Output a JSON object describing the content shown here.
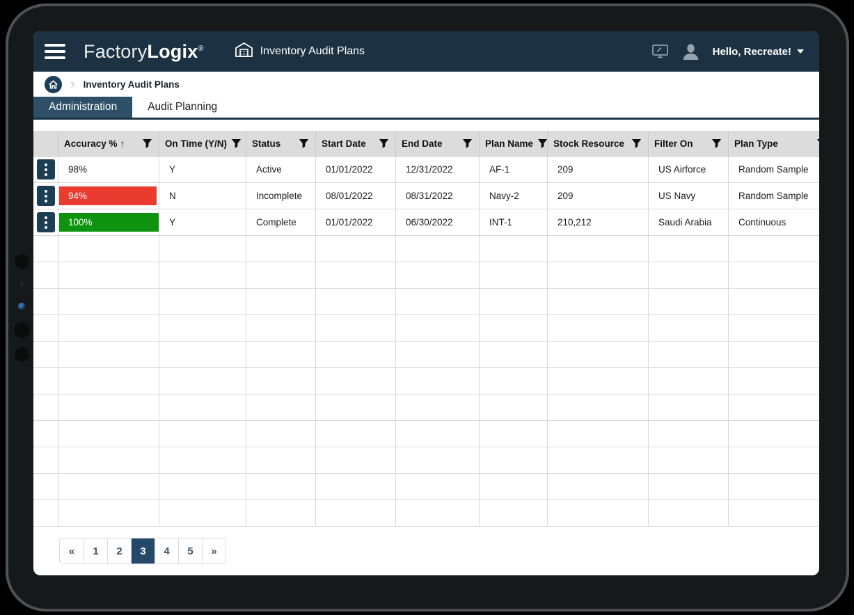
{
  "app_bar": {
    "brand": {
      "part1": "Factory",
      "part2": "Logix",
      "registered": "®"
    },
    "page_title": "Inventory Audit Plans",
    "greeting": "Hello, Recreate!"
  },
  "breadcrumb": {
    "separator": "›",
    "current": "Inventory Audit Plans"
  },
  "tabs": [
    {
      "label": "Administration",
      "active": true
    },
    {
      "label": "Audit Planning",
      "active": false
    }
  ],
  "table": {
    "sort_asc_glyph": "↑",
    "columns": [
      {
        "label": "",
        "filter": false
      },
      {
        "label": "Accuracy %",
        "sort": "asc",
        "filter": true
      },
      {
        "label": "On Time (Y/N)",
        "filter": true
      },
      {
        "label": "Status",
        "filter": true
      },
      {
        "label": "Start Date",
        "filter": true
      },
      {
        "label": "End Date",
        "filter": true
      },
      {
        "label": "Plan Name",
        "filter": true
      },
      {
        "label": "Stock Resource",
        "filter": true
      },
      {
        "label": "Filter On",
        "filter": true
      },
      {
        "label": "Plan Type",
        "filter": true
      }
    ],
    "rows": [
      {
        "accuracy": "98%",
        "accuracy_bar": "none",
        "on_time": "Y",
        "status": "Active",
        "start_date": "01/01/2022",
        "end_date": "12/31/2022",
        "plan_name": "AF-1",
        "stock_resource": "209",
        "filter_on": "US Airforce",
        "plan_type": "Random Sample"
      },
      {
        "accuracy": "94%",
        "accuracy_bar": "red",
        "on_time": "N",
        "status": "Incomplete",
        "start_date": "08/01/2022",
        "end_date": "08/31/2022",
        "plan_name": "Navy-2",
        "stock_resource": "209",
        "filter_on": "US Navy",
        "plan_type": "Random Sample"
      },
      {
        "accuracy": "100%",
        "accuracy_bar": "green",
        "on_time": "Y",
        "status": "Complete",
        "start_date": "01/01/2022",
        "end_date": "06/30/2022",
        "plan_name": "INT-1",
        "stock_resource": "210,212",
        "filter_on": "Saudi Arabia",
        "plan_type": "Continuous"
      }
    ],
    "empty_row_count": 11
  },
  "pagination": {
    "items": [
      {
        "label": "«",
        "active": false
      },
      {
        "label": "1",
        "active": false
      },
      {
        "label": "2",
        "active": false
      },
      {
        "label": "3",
        "active": true
      },
      {
        "label": "4",
        "active": false
      },
      {
        "label": "5",
        "active": false
      },
      {
        "label": "»",
        "active": false
      }
    ]
  },
  "colors": {
    "navbar": "#1c3242",
    "tab_active": "#2d5068",
    "bar_red": "#ea3b30",
    "bar_green": "#0d930d",
    "kebab_bg": "#1c3e55",
    "header_bg": "#dcdcdc",
    "pagination_active": "#24496b"
  }
}
